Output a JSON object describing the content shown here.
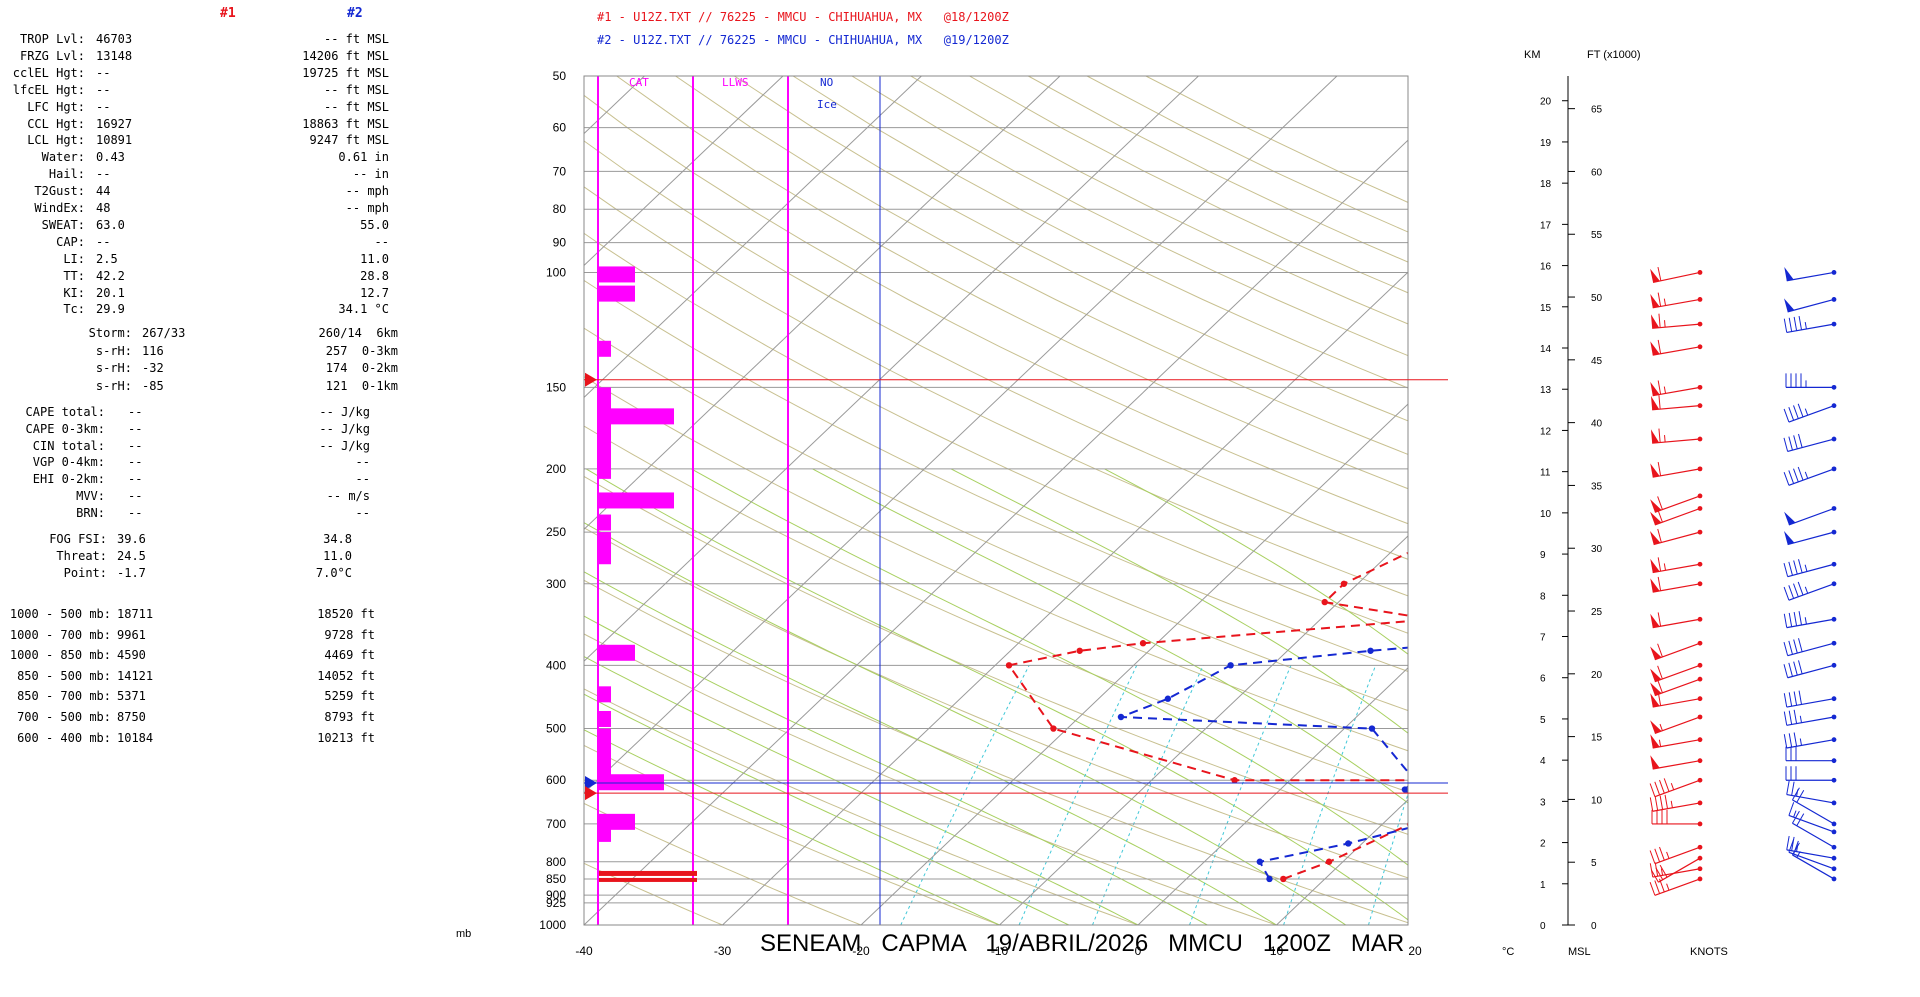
{
  "params": {
    "col1_header": "#1",
    "col2_header": "#2",
    "rows": [
      {
        "label": "TROP Lvl:",
        "v1": "46703",
        "v2": "-- ft MSL"
      },
      {
        "label": "FRZG Lvl:",
        "v1": "13148",
        "v2": "14206 ft MSL"
      },
      {
        "label": "cclEL Hgt:",
        "v1": "--",
        "v2": "19725 ft MSL"
      },
      {
        "label": "lfcEL Hgt:",
        "v1": "--",
        "v2": "-- ft MSL"
      },
      {
        "label": "LFC Hgt:",
        "v1": "--",
        "v2": "-- ft MSL"
      },
      {
        "label": "CCL Hgt:",
        "v1": "16927",
        "v2": "18863 ft MSL"
      },
      {
        "label": "LCL Hgt:",
        "v1": "10891",
        "v2": "9247 ft MSL"
      },
      {
        "label": "Water:",
        "v1": "0.43",
        "v2": "0.61 in"
      },
      {
        "label": "Hail:",
        "v1": "--",
        "v2": "-- in"
      },
      {
        "label": "T2Gust:",
        "v1": "44",
        "v2": "-- mph"
      },
      {
        "label": "WindEx:",
        "v1": "48",
        "v2": "-- mph"
      },
      {
        "label": "SWEAT:",
        "v1": "63.0",
        "v2": "55.0"
      },
      {
        "label": "CAP:",
        "v1": "--",
        "v2": "--"
      },
      {
        "label": "LI:",
        "v1": "2.5",
        "v2": "11.0"
      },
      {
        "label": "TT:",
        "v1": "42.2",
        "v2": "28.8"
      },
      {
        "label": "KI:",
        "v1": "20.1",
        "v2": "12.7"
      },
      {
        "label": "Tc:",
        "v1": "29.9",
        "v2": "34.1 °C"
      }
    ],
    "storm_rows": [
      {
        "label": "Storm:",
        "v1": "267/33",
        "v2": "260/14  6km"
      },
      {
        "label": "s-rH:",
        "v1": "116",
        "v2": "257  0-3km"
      },
      {
        "label": "s-rH:",
        "v1": "-32",
        "v2": "174  0-2km"
      },
      {
        "label": "s-rH:",
        "v1": "-85",
        "v2": "121  0-1km"
      }
    ],
    "cape_rows": [
      {
        "label": "CAPE total:",
        "v1": "--",
        "v2": "-- J/kg"
      },
      {
        "label": "CAPE 0-3km:",
        "v1": "--",
        "v2": "-- J/kg"
      },
      {
        "label": "CIN total:",
        "v1": "--",
        "v2": "-- J/kg"
      },
      {
        "label": "VGP 0-4km:",
        "v1": "--",
        "v2": "--"
      },
      {
        "label": "EHI 0-2km:",
        "v1": "--",
        "v2": "--"
      },
      {
        "label": "MVV:",
        "v1": "--",
        "v2": "-- m/s"
      },
      {
        "label": "BRN:",
        "v1": "--",
        "v2": "--"
      }
    ],
    "fog_rows": [
      {
        "label": "FOG FSI:",
        "v1": "39.6",
        "v2": "34.8"
      },
      {
        "label": "Threat:",
        "v1": "24.5",
        "v2": "11.0"
      },
      {
        "label": "Point:",
        "v1": "-1.7",
        "v2": "7.0°C"
      }
    ],
    "thick_rows": [
      {
        "label": "1000 - 500 mb:",
        "v1": "18711",
        "v2": "18520 ft"
      },
      {
        "label": "1000 - 700 mb:",
        "v1": "9961",
        "v2": "9728 ft"
      },
      {
        "label": "1000 - 850 mb:",
        "v1": "4590",
        "v2": "4469 ft"
      },
      {
        "label": "850 - 500 mb:",
        "v1": "14121",
        "v2": "14052 ft"
      },
      {
        "label": "850 - 700 mb:",
        "v1": "5371",
        "v2": "5259 ft"
      },
      {
        "label": "700 - 500 mb:",
        "v1": "8750",
        "v2": "8793 ft"
      },
      {
        "label": "600 - 400 mb:",
        "v1": "10184",
        "v2": "10213 ft"
      }
    ]
  },
  "legend": {
    "line1": "#1 - U12Z.TXT // 76225 - MMCU - CHIHUAHUA, MX   @18/1200Z",
    "line2": "#2 - U12Z.TXT // 76225 - MMCU - CHIHUAHUA, MX   @19/1200Z"
  },
  "labels": {
    "cat": "CAT",
    "llws": "LLWS",
    "no_ice": "NO",
    "ice": "Ice",
    "km": "KM",
    "ft": "FT (x1000)",
    "mb": "mb",
    "celsius": "°C",
    "msl": "MSL",
    "knots": "KNOTS"
  },
  "footer": "SENEAM   CAPMA   19/ABRIL/2026   MMCU   1200Z   MAR",
  "colors": {
    "run1": "#e8141c",
    "run2": "#1428d2",
    "panel": "#ff00ff",
    "grid": "#b0b0b0"
  },
  "chart_data": {
    "type": "line",
    "chart_kind": "Skew-T log-P sounding",
    "pressure_ticks": [
      50,
      60,
      70,
      80,
      90,
      100,
      150,
      200,
      250,
      300,
      400,
      500,
      600,
      700,
      800,
      850,
      900,
      925,
      1000
    ],
    "temp_ticks": [
      -40,
      -30,
      -20,
      -10,
      0,
      10,
      20
    ],
    "km_ticks": [
      0,
      1,
      2,
      3,
      4,
      5,
      6,
      7,
      8,
      9,
      10,
      11,
      12,
      13,
      14,
      15,
      16,
      17,
      18,
      19,
      20
    ],
    "ft_ticks": [
      0,
      5,
      10,
      15,
      20,
      25,
      30,
      35,
      40,
      45,
      50,
      55,
      60,
      65
    ],
    "series": [
      {
        "name": "#1",
        "kind": "temperature",
        "points": [
          [
            850,
            25
          ],
          [
            700,
            21
          ],
          [
            630,
            16
          ],
          [
            600,
            15
          ],
          [
            550,
            14
          ],
          [
            500,
            14
          ],
          [
            440,
            13
          ],
          [
            400,
            12
          ],
          [
            350,
            8
          ],
          [
            300,
            5
          ],
          [
            250,
            1
          ],
          [
            220,
            1
          ],
          [
            200,
            1
          ],
          [
            180,
            0
          ],
          [
            150,
            2
          ],
          [
            120,
            7
          ],
          [
            100,
            15
          ]
        ]
      },
      {
        "name": "#1",
        "kind": "dewpoint",
        "points": [
          [
            850,
            7
          ],
          [
            800,
            9
          ],
          [
            700,
            12
          ],
          [
            600,
            10
          ],
          [
            600,
            -4
          ],
          [
            500,
            -21
          ],
          [
            400,
            -29
          ],
          [
            380,
            -25
          ],
          [
            370,
            -21
          ],
          [
            340,
            -2
          ],
          [
            320,
            -11
          ],
          [
            300,
            -11
          ],
          [
            260,
            -8
          ],
          [
            250,
            -3
          ],
          [
            200,
            -9
          ],
          [
            180,
            -9
          ],
          [
            150,
            -13
          ],
          [
            120,
            -9
          ],
          [
            110,
            -7
          ],
          [
            100,
            -3
          ]
        ]
      },
      {
        "name": "#2",
        "kind": "temperature",
        "points": [
          [
            850,
            17
          ],
          [
            700,
            20
          ],
          [
            650,
            20
          ],
          [
            620,
            18
          ],
          [
            600,
            17
          ],
          [
            520,
            14
          ],
          [
            500,
            15
          ],
          [
            450,
            14
          ],
          [
            420,
            12
          ],
          [
            350,
            8
          ],
          [
            300,
            5
          ],
          [
            250,
            -1
          ],
          [
            230,
            -1
          ],
          [
            200,
            1
          ],
          [
            170,
            2
          ],
          [
            150,
            2
          ],
          [
            120,
            7
          ],
          [
            100,
            12
          ]
        ]
      },
      {
        "name": "#2",
        "kind": "dewpoint",
        "points": [
          [
            850,
            6
          ],
          [
            800,
            4
          ],
          [
            750,
            9
          ],
          [
            700,
            13
          ],
          [
            650,
            11
          ],
          [
            620,
            9
          ],
          [
            600,
            9
          ],
          [
            500,
            2
          ],
          [
            480,
            -17
          ],
          [
            450,
            -15
          ],
          [
            400,
            -13
          ],
          [
            380,
            -4
          ],
          [
            370,
            2
          ],
          [
            340,
            2
          ],
          [
            300,
            0
          ],
          [
            250,
            -5
          ],
          [
            240,
            -7
          ],
          [
            200,
            -10
          ],
          [
            170,
            -17
          ],
          [
            150,
            -17
          ],
          [
            110,
            -8
          ],
          [
            100,
            -6
          ]
        ]
      }
    ],
    "winds": [
      {
        "name": "#1",
        "pressures": [
          850,
          820,
          790,
          760,
          700,
          650,
          600,
          560,
          520,
          480,
          450,
          420,
          400,
          370,
          340,
          300,
          280,
          250,
          230,
          220,
          200,
          180,
          160,
          150,
          130,
          120,
          110,
          100
        ],
        "dir_deg": [
          250,
          260,
          240,
          250,
          270,
          260,
          250,
          260,
          260,
          250,
          260,
          250,
          250,
          250,
          260,
          260,
          260,
          255,
          250,
          250,
          260,
          265,
          265,
          260,
          260,
          265,
          260,
          258
        ],
        "speed_kt": [
          35,
          25,
          30,
          35,
          40,
          45,
          45,
          50,
          55,
          55,
          60,
          60,
          60,
          60,
          60,
          60,
          65,
          60,
          60,
          60,
          60,
          65,
          60,
          65,
          60,
          65,
          65,
          60
        ]
      },
      {
        "name": "#2",
        "pressures": [
          850,
          820,
          790,
          760,
          720,
          700,
          650,
          600,
          560,
          520,
          480,
          450,
          400,
          370,
          340,
          300,
          280,
          250,
          230,
          200,
          180,
          160,
          150,
          120,
          110,
          100
        ],
        "dir_deg": [
          300,
          290,
          280,
          300,
          290,
          300,
          280,
          270,
          270,
          260,
          260,
          260,
          255,
          255,
          260,
          250,
          255,
          255,
          250,
          250,
          255,
          250,
          270,
          260,
          255,
          260
        ],
        "speed_kt": [
          15,
          20,
          25,
          20,
          15,
          20,
          25,
          30,
          30,
          35,
          35,
          40,
          40,
          40,
          45,
          45,
          45,
          50,
          50,
          45,
          40,
          45,
          45,
          45,
          50,
          50
        ]
      }
    ],
    "xlabel": "°C",
    "ylabel": "mb"
  }
}
